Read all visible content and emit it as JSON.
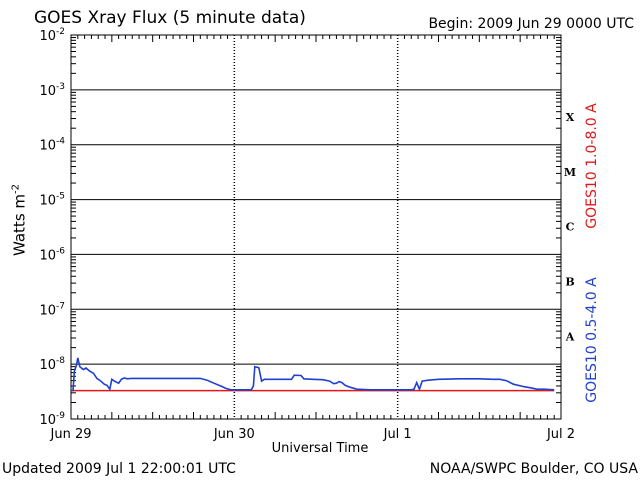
{
  "header": {
    "title": "GOES Xray Flux (5 minute data)",
    "begin": "Begin:  2009 Jun 29 0000 UTC"
  },
  "footer": {
    "updated": "Updated 2009 Jul  1 22:00:01 UTC",
    "credit": "NOAA/SWPC Boulder, CO USA"
  },
  "chart_data": {
    "type": "line",
    "title": "GOES Xray Flux (5 minute data)",
    "xlabel": "Universal Time",
    "ylabel": "Watts m",
    "ylabel_superscript": "-2",
    "yscale": "log",
    "ylim": [
      1e-09,
      0.01
    ],
    "xlim": [
      0,
      72
    ],
    "x_units": "hours since 2009 Jun 29 0000 UTC",
    "x_ticks": [
      {
        "x": 0,
        "label": "Jun 29"
      },
      {
        "x": 24,
        "label": "Jun 30"
      },
      {
        "x": 48,
        "label": "Jul 1"
      },
      {
        "x": 72,
        "label": "Jul 2"
      }
    ],
    "y_ticks": [
      {
        "value": 1e-09,
        "base": "10",
        "exp": "-9"
      },
      {
        "value": 1e-08,
        "base": "10",
        "exp": "-8"
      },
      {
        "value": 1e-07,
        "base": "10",
        "exp": "-7"
      },
      {
        "value": 1e-06,
        "base": "10",
        "exp": "-6"
      },
      {
        "value": 1e-05,
        "base": "10",
        "exp": "-5"
      },
      {
        "value": 0.0001,
        "base": "10",
        "exp": "-4"
      },
      {
        "value": 0.001,
        "base": "10",
        "exp": "-3"
      },
      {
        "value": 0.01,
        "base": "10",
        "exp": "-2"
      }
    ],
    "flare_classes": [
      {
        "label": "A",
        "value": 3.2e-08
      },
      {
        "label": "B",
        "value": 3.2e-07
      },
      {
        "label": "C",
        "value": 3.2e-06
      },
      {
        "label": "M",
        "value": 3.2e-05
      },
      {
        "label": "X",
        "value": 0.00032
      }
    ],
    "grid": true,
    "series": [
      {
        "name": "GOES10 1.0-8.0 A",
        "color": "#e01818",
        "points": [
          [
            0,
            3.3e-09
          ],
          [
            71,
            3.3e-09
          ]
        ]
      },
      {
        "name": "GOES10 0.5-4.0 A",
        "color": "#2040d0",
        "points": [
          [
            0,
            3.3e-09
          ],
          [
            0.3,
            3.3e-09
          ],
          [
            0.5,
            7.5e-09
          ],
          [
            0.8,
            9.5e-09
          ],
          [
            1.0,
            1.3e-08
          ],
          [
            1.3,
            9e-09
          ],
          [
            1.8,
            8e-09
          ],
          [
            2.2,
            8.5e-09
          ],
          [
            2.7,
            7.5e-09
          ],
          [
            3.3,
            6.8e-09
          ],
          [
            3.8,
            5.5e-09
          ],
          [
            4.3,
            5e-09
          ],
          [
            4.9,
            4.3e-09
          ],
          [
            5.3,
            4.1e-09
          ],
          [
            5.7,
            3.5e-09
          ],
          [
            6.0,
            5.3e-09
          ],
          [
            6.5,
            4.8e-09
          ],
          [
            7.0,
            4.5e-09
          ],
          [
            7.4,
            5.3e-09
          ],
          [
            7.8,
            5.6e-09
          ],
          [
            8.3,
            5.4e-09
          ],
          [
            8.8,
            5.5e-09
          ],
          [
            12,
            5.5e-09
          ],
          [
            16,
            5.5e-09
          ],
          [
            19,
            5.5e-09
          ],
          [
            20,
            5.1e-09
          ],
          [
            21,
            4.5e-09
          ],
          [
            22,
            4e-09
          ],
          [
            22.8,
            3.6e-09
          ],
          [
            23.5,
            3.4e-09
          ],
          [
            26.5,
            3.4e-09
          ],
          [
            26.8,
            4e-09
          ],
          [
            27.0,
            9e-09
          ],
          [
            27.6,
            8.6e-09
          ],
          [
            28.0,
            4.9e-09
          ],
          [
            28.4,
            5.3e-09
          ],
          [
            30.0,
            5.3e-09
          ],
          [
            31.5,
            5.3e-09
          ],
          [
            32.4,
            5.3e-09
          ],
          [
            32.8,
            6.3e-09
          ],
          [
            33.8,
            6.2e-09
          ],
          [
            34.2,
            5.4e-09
          ],
          [
            35.5,
            5.3e-09
          ],
          [
            37.0,
            5.2e-09
          ],
          [
            38.0,
            4.9e-09
          ],
          [
            38.6,
            4.4e-09
          ],
          [
            39.0,
            4.5e-09
          ],
          [
            39.4,
            4.8e-09
          ],
          [
            39.8,
            4.6e-09
          ],
          [
            40.3,
            4.1e-09
          ],
          [
            41.0,
            3.8e-09
          ],
          [
            42.0,
            3.5e-09
          ],
          [
            44.0,
            3.4e-09
          ],
          [
            47.0,
            3.4e-09
          ],
          [
            48.5,
            3.4e-09
          ],
          [
            50.0,
            3.4e-09
          ],
          [
            50.4,
            3.5e-09
          ],
          [
            50.8,
            4.6e-09
          ],
          [
            51.2,
            3.5e-09
          ],
          [
            51.6,
            4.9e-09
          ],
          [
            52.5,
            5.1e-09
          ],
          [
            54.0,
            5.3e-09
          ],
          [
            57.0,
            5.4e-09
          ],
          [
            60.0,
            5.4e-09
          ],
          [
            62.0,
            5.3e-09
          ],
          [
            63.0,
            5.3e-09
          ],
          [
            64.0,
            5e-09
          ],
          [
            65.0,
            4.3e-09
          ],
          [
            66.5,
            3.9e-09
          ],
          [
            67.5,
            3.7e-09
          ],
          [
            68.5,
            3.5e-09
          ],
          [
            69.5,
            3.5e-09
          ],
          [
            71.0,
            3.4e-09
          ]
        ]
      }
    ]
  }
}
